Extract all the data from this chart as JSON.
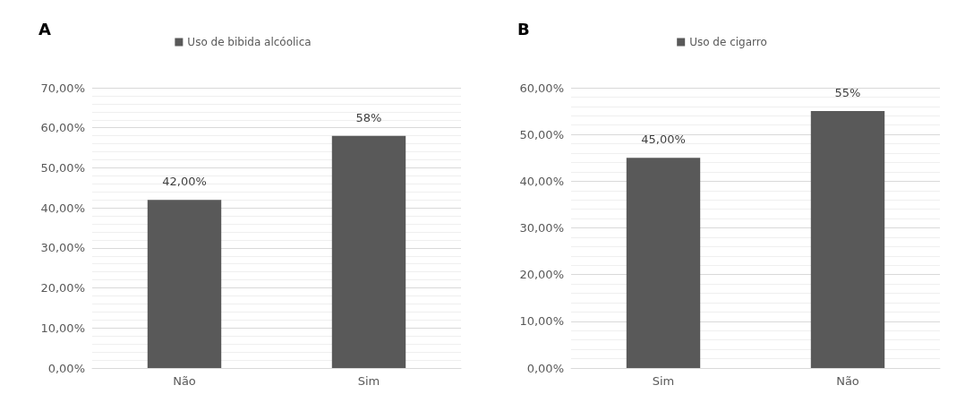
{
  "chart_data": [
    {
      "type": "bar",
      "title": "A",
      "categories": [
        "Não",
        "Sim"
      ],
      "series": [
        {
          "name": "Uso de bibida alcóolica",
          "color": "#595959",
          "values": [
            42,
            58
          ],
          "value_labels": [
            "42,00%",
            "58%"
          ]
        }
      ],
      "ylim": [
        0,
        70
      ],
      "yticks": [
        {
          "value": 0,
          "label": "0,00%"
        },
        {
          "value": 10,
          "label": "10,00%"
        },
        {
          "value": 20,
          "label": "20,00%"
        },
        {
          "value": 30,
          "label": "30,00%"
        },
        {
          "value": 40,
          "label": "40,00%"
        },
        {
          "value": 50,
          "label": "50,00%"
        },
        {
          "value": 60,
          "label": "60,00%"
        },
        {
          "value": 70,
          "label": "70,00%"
        }
      ],
      "grid": "y",
      "legend": "top"
    },
    {
      "type": "bar",
      "title": "B",
      "categories": [
        "Sim",
        "Não"
      ],
      "series": [
        {
          "name": "Uso de cigarro",
          "color": "#595959",
          "values": [
            45,
            55
          ],
          "value_labels": [
            "45,00%",
            "55%"
          ]
        }
      ],
      "ylim": [
        0,
        60
      ],
      "yticks": [
        {
          "value": 0,
          "label": "0,00%"
        },
        {
          "value": 10,
          "label": "10,00%"
        },
        {
          "value": 20,
          "label": "20,00%"
        },
        {
          "value": 30,
          "label": "30,00%"
        },
        {
          "value": 40,
          "label": "40,00%"
        },
        {
          "value": 50,
          "label": "50,00%"
        },
        {
          "value": 60,
          "label": "60,00%"
        }
      ],
      "grid": "y",
      "legend": "top"
    }
  ]
}
